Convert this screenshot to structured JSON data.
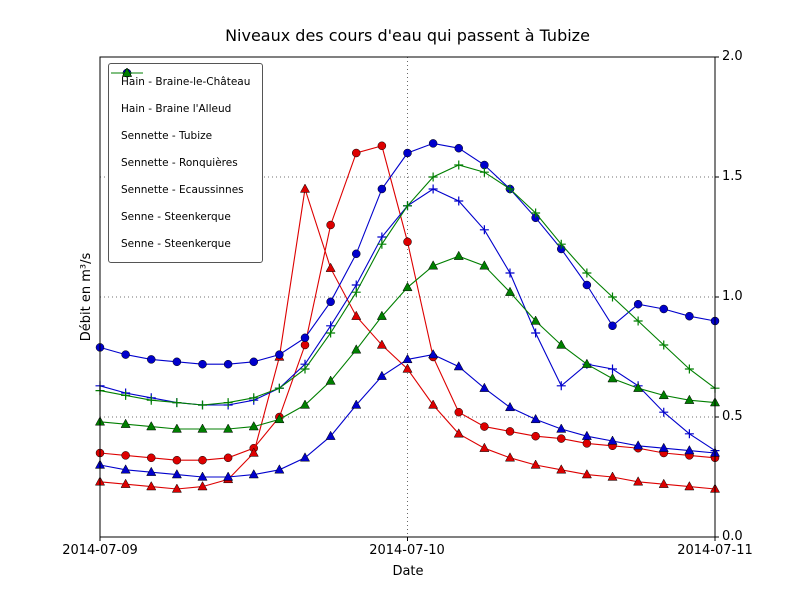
{
  "chart_data": {
    "type": "line",
    "title": "Niveaux des cours d'eau qui passent à Tubize",
    "xlabel": "Date",
    "ylabel": "Débit en m³/s",
    "x_unit": "hours since 2014-07-09 00:00",
    "xlim": [
      0,
      48
    ],
    "ylim": [
      0.0,
      2.0
    ],
    "grid": "dotted",
    "legend_position": "upper left",
    "xticks": [
      {
        "value": 0,
        "label": "2014-07-09"
      },
      {
        "value": 24,
        "label": "2014-07-10"
      },
      {
        "value": 48,
        "label": "2014-07-11"
      }
    ],
    "yticks": [
      {
        "value": 0.0,
        "label": "0.0"
      },
      {
        "value": 0.5,
        "label": "0.5"
      },
      {
        "value": 1.0,
        "label": "1.0"
      },
      {
        "value": 1.5,
        "label": "1.5"
      },
      {
        "value": 2.0,
        "label": "2.0"
      }
    ],
    "x": [
      0,
      2,
      4,
      6,
      8,
      10,
      12,
      14,
      16,
      18,
      20,
      22,
      24,
      26,
      28,
      30,
      32,
      34,
      36,
      38,
      40,
      42,
      44,
      46,
      48
    ],
    "series": [
      {
        "name": "Hain - Braine-le-Château",
        "color": "#dd0000",
        "marker": "circle",
        "values": [
          0.35,
          0.34,
          0.33,
          0.32,
          0.32,
          0.33,
          0.37,
          0.5,
          0.8,
          1.3,
          1.6,
          1.63,
          1.23,
          0.75,
          0.52,
          0.46,
          0.44,
          0.42,
          0.41,
          0.39,
          0.38,
          0.37,
          0.35,
          0.34,
          0.33
        ]
      },
      {
        "name": "Hain - Braine l'Alleud",
        "color": "#dd0000",
        "marker": "triangle",
        "values": [
          0.23,
          0.22,
          0.21,
          0.2,
          0.21,
          0.24,
          0.35,
          0.75,
          1.45,
          1.12,
          0.92,
          0.8,
          0.7,
          0.55,
          0.43,
          0.37,
          0.33,
          0.3,
          0.28,
          0.26,
          0.25,
          0.23,
          0.22,
          0.21,
          0.2
        ]
      },
      {
        "name": "Sennette - Tubize",
        "color": "#0000cc",
        "marker": "circle",
        "values": [
          0.79,
          0.76,
          0.74,
          0.73,
          0.72,
          0.72,
          0.73,
          0.76,
          0.83,
          0.98,
          1.18,
          1.45,
          1.6,
          1.64,
          1.62,
          1.55,
          1.45,
          1.33,
          1.2,
          1.05,
          0.88,
          0.97,
          0.95,
          0.92,
          0.9
        ]
      },
      {
        "name": "Sennette - Ronquières",
        "color": "#0000cc",
        "marker": "plus",
        "values": [
          0.63,
          0.6,
          0.58,
          0.56,
          0.55,
          0.55,
          0.57,
          0.62,
          0.72,
          0.88,
          1.05,
          1.25,
          1.38,
          1.45,
          1.4,
          1.28,
          1.1,
          0.85,
          0.63,
          0.72,
          0.7,
          0.63,
          0.52,
          0.43,
          0.36
        ]
      },
      {
        "name": "Sennette - Ecaussinnes",
        "color": "#0000cc",
        "marker": "triangle",
        "values": [
          0.3,
          0.28,
          0.27,
          0.26,
          0.25,
          0.25,
          0.26,
          0.28,
          0.33,
          0.42,
          0.55,
          0.67,
          0.74,
          0.76,
          0.71,
          0.62,
          0.54,
          0.49,
          0.45,
          0.42,
          0.4,
          0.38,
          0.37,
          0.36,
          0.35
        ]
      },
      {
        "name": "Senne - Steenkerque",
        "color": "#007f00",
        "marker": "plus",
        "values": [
          0.61,
          0.59,
          0.57,
          0.56,
          0.55,
          0.56,
          0.58,
          0.62,
          0.7,
          0.85,
          1.02,
          1.22,
          1.38,
          1.5,
          1.55,
          1.52,
          1.45,
          1.35,
          1.22,
          1.1,
          1.0,
          0.9,
          0.8,
          0.7,
          0.62
        ]
      },
      {
        "name": "Senne - Steenkerque",
        "color": "#007f00",
        "marker": "triangle",
        "values": [
          0.48,
          0.47,
          0.46,
          0.45,
          0.45,
          0.45,
          0.46,
          0.49,
          0.55,
          0.65,
          0.78,
          0.92,
          1.04,
          1.13,
          1.17,
          1.13,
          1.02,
          0.9,
          0.8,
          0.72,
          0.66,
          0.62,
          0.59,
          0.57,
          0.56
        ]
      }
    ]
  }
}
